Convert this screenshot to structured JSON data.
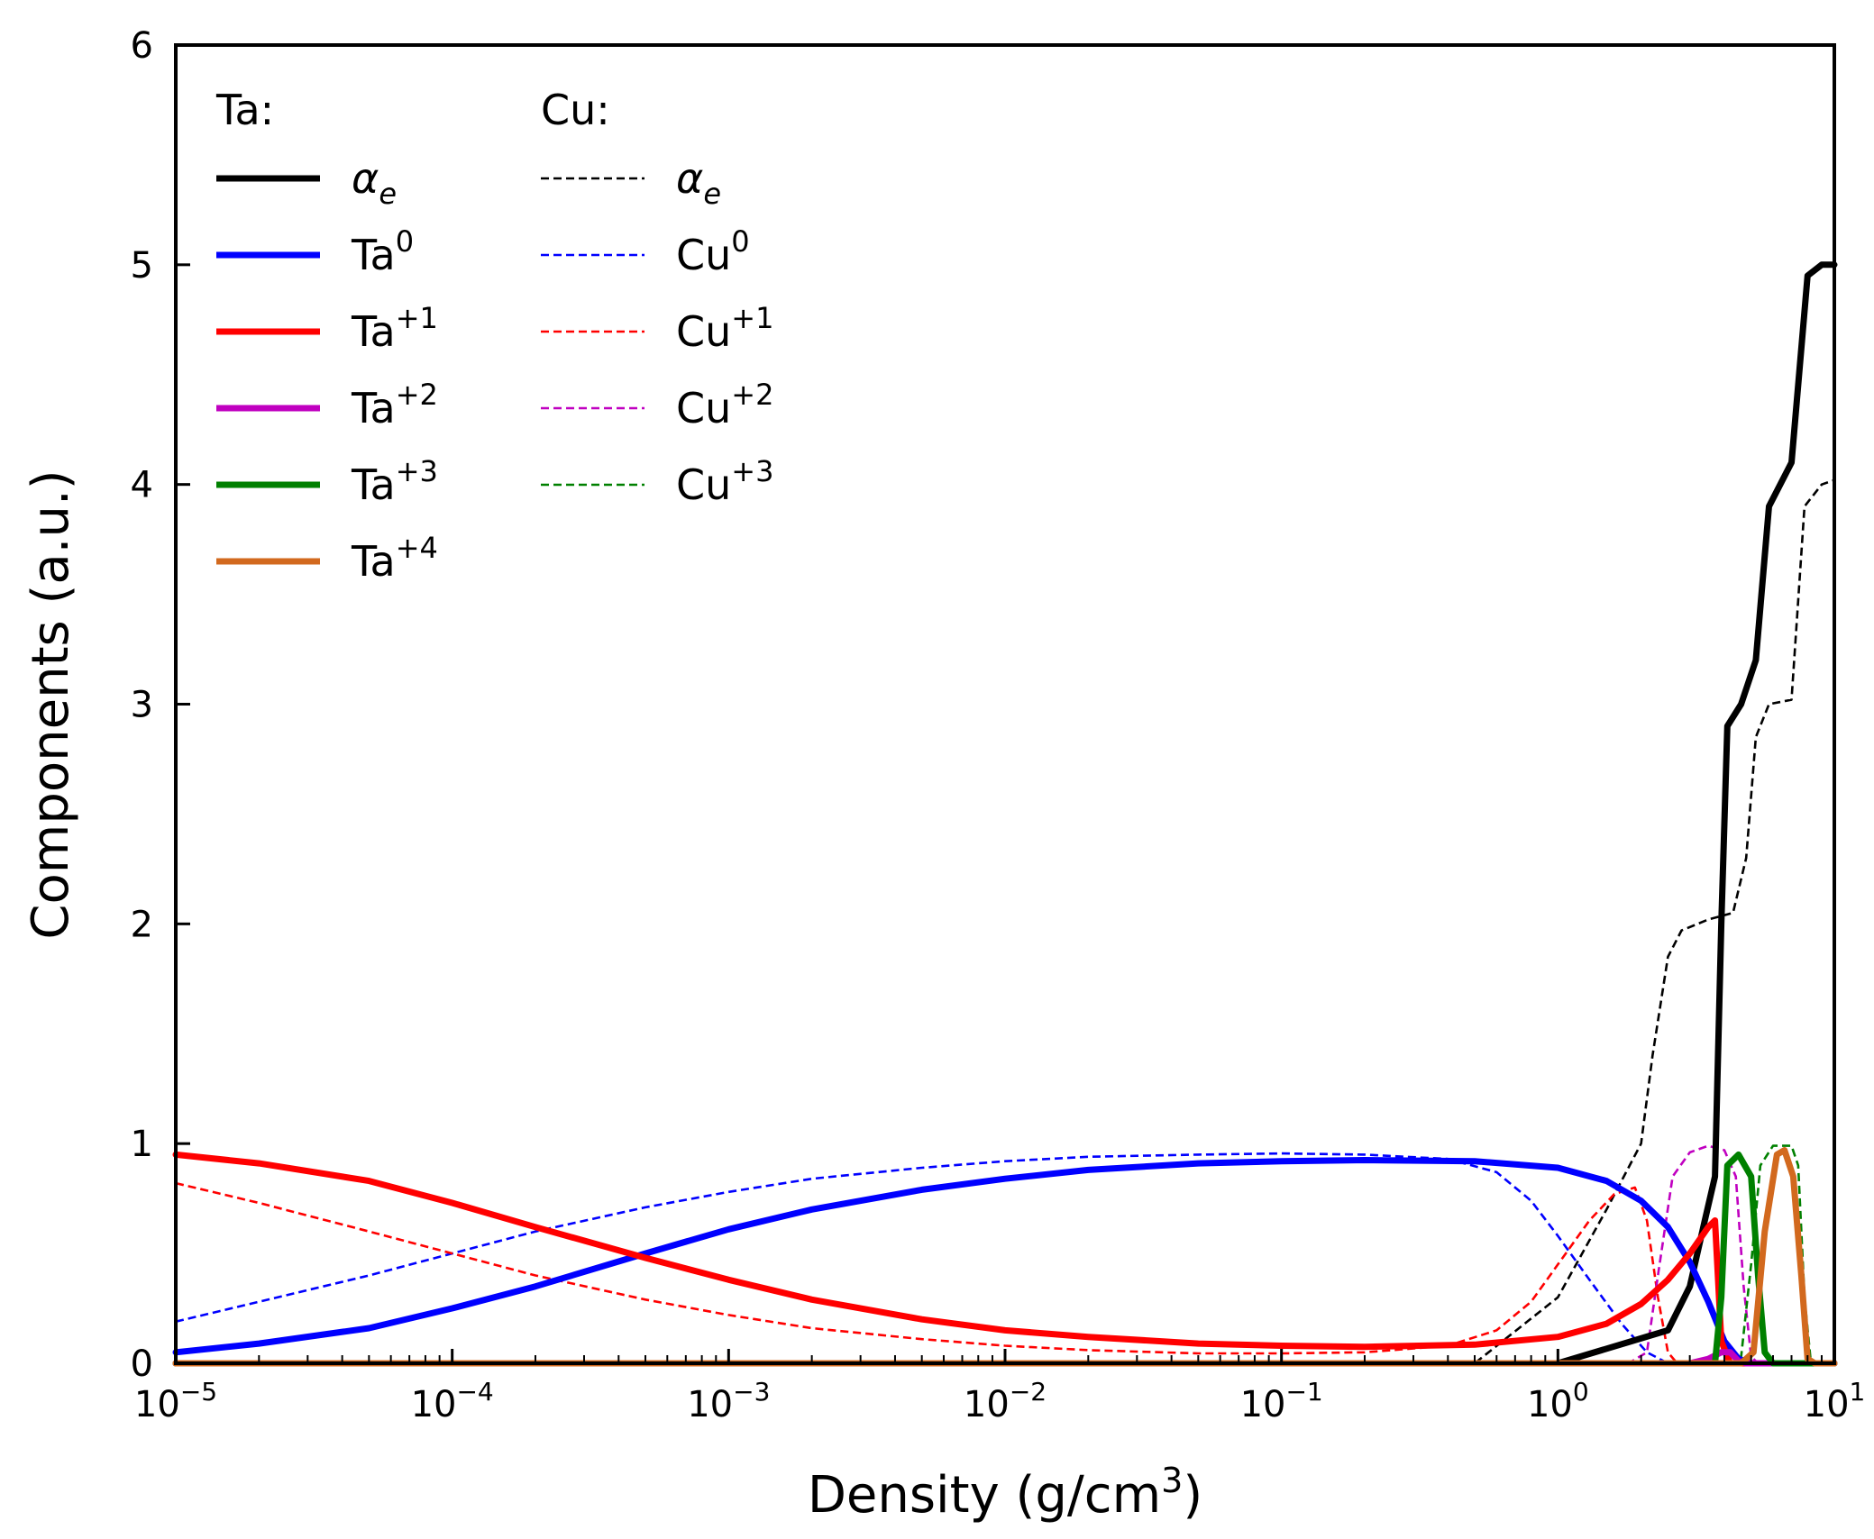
{
  "chart_data": {
    "type": "line",
    "xscale": "log",
    "xlabel": "Density (g/cm",
    "xlabel_sup": "3",
    "xlabel_suffix": ")",
    "ylabel": "Components (a.u.)",
    "xlim": [
      1e-05,
      10
    ],
    "ylim": [
      0,
      6
    ],
    "xticks": [
      {
        "base": "10",
        "exp": "−5",
        "value": 1e-05
      },
      {
        "base": "10",
        "exp": "−4",
        "value": 0.0001
      },
      {
        "base": "10",
        "exp": "−3",
        "value": 0.001
      },
      {
        "base": "10",
        "exp": "−2",
        "value": 0.01
      },
      {
        "base": "10",
        "exp": "−1",
        "value": 0.1
      },
      {
        "base": "10",
        "exp": "0",
        "value": 1
      },
      {
        "base": "10",
        "exp": "1",
        "value": 10
      }
    ],
    "yticks": [
      "0",
      "1",
      "2",
      "3",
      "4",
      "5",
      "6"
    ],
    "legend": {
      "placement": "top-left",
      "groups": [
        {
          "title": "Ta:",
          "entries": [
            {
              "label": "α",
              "sub": "e",
              "sup": "",
              "italic": true,
              "series": "ta_alpha"
            },
            {
              "label": "Ta",
              "sub": "",
              "sup": "0",
              "series": "ta0"
            },
            {
              "label": "Ta",
              "sub": "",
              "sup": "+1",
              "series": "ta1"
            },
            {
              "label": "Ta",
              "sub": "",
              "sup": "+2",
              "series": "ta2"
            },
            {
              "label": "Ta",
              "sub": "",
              "sup": "+3",
              "series": "ta3"
            },
            {
              "label": "Ta",
              "sub": "",
              "sup": "+4",
              "series": "ta4"
            }
          ]
        },
        {
          "title": "Cu:",
          "entries": [
            {
              "label": "α",
              "sub": "e",
              "sup": "",
              "italic": true,
              "series": "cu_alpha"
            },
            {
              "label": "Cu",
              "sub": "",
              "sup": "0",
              "series": "cu0"
            },
            {
              "label": "Cu",
              "sub": "",
              "sup": "+1",
              "series": "cu1"
            },
            {
              "label": "Cu",
              "sub": "",
              "sup": "+2",
              "series": "cu2"
            },
            {
              "label": "Cu",
              "sub": "",
              "sup": "+3",
              "series": "cu3"
            }
          ]
        }
      ]
    },
    "series": [
      {
        "id": "ta_alpha",
        "name": "Ta α_e",
        "color": "#000000",
        "style": "solid",
        "points": [
          [
            1e-05,
            0
          ],
          [
            1,
            0
          ],
          [
            2.5,
            0.15
          ],
          [
            3.0,
            0.35
          ],
          [
            3.4,
            0.65
          ],
          [
            3.7,
            0.85
          ],
          [
            3.9,
            2.0
          ],
          [
            4.1,
            2.9
          ],
          [
            4.6,
            3.0
          ],
          [
            5.2,
            3.2
          ],
          [
            5.8,
            3.9
          ],
          [
            7.0,
            4.1
          ],
          [
            8.0,
            4.95
          ],
          [
            9.0,
            5.0
          ],
          [
            10,
            5.0
          ]
        ]
      },
      {
        "id": "ta0",
        "name": "Ta0",
        "color": "#0000ff",
        "style": "solid",
        "points": [
          [
            1e-05,
            0.05
          ],
          [
            2e-05,
            0.09
          ],
          [
            5e-05,
            0.16
          ],
          [
            0.0001,
            0.25
          ],
          [
            0.0002,
            0.35
          ],
          [
            0.0005,
            0.5
          ],
          [
            0.001,
            0.61
          ],
          [
            0.002,
            0.7
          ],
          [
            0.005,
            0.79
          ],
          [
            0.01,
            0.84
          ],
          [
            0.02,
            0.88
          ],
          [
            0.05,
            0.91
          ],
          [
            0.1,
            0.92
          ],
          [
            0.2,
            0.925
          ],
          [
            0.5,
            0.92
          ],
          [
            1,
            0.89
          ],
          [
            1.5,
            0.83
          ],
          [
            2.0,
            0.74
          ],
          [
            2.5,
            0.62
          ],
          [
            3.0,
            0.46
          ],
          [
            3.5,
            0.28
          ],
          [
            4.0,
            0.1
          ],
          [
            4.5,
            0.02
          ],
          [
            5,
            0
          ],
          [
            10,
            0
          ]
        ]
      },
      {
        "id": "ta1",
        "name": "Ta+1",
        "color": "#ff0000",
        "style": "solid",
        "points": [
          [
            1e-05,
            0.95
          ],
          [
            2e-05,
            0.91
          ],
          [
            5e-05,
            0.83
          ],
          [
            0.0001,
            0.73
          ],
          [
            0.0002,
            0.62
          ],
          [
            0.0005,
            0.48
          ],
          [
            0.001,
            0.38
          ],
          [
            0.002,
            0.29
          ],
          [
            0.005,
            0.2
          ],
          [
            0.01,
            0.15
          ],
          [
            0.02,
            0.12
          ],
          [
            0.05,
            0.09
          ],
          [
            0.1,
            0.08
          ],
          [
            0.2,
            0.075
          ],
          [
            0.5,
            0.085
          ],
          [
            1,
            0.12
          ],
          [
            1.5,
            0.18
          ],
          [
            2,
            0.27
          ],
          [
            2.5,
            0.38
          ],
          [
            3,
            0.5
          ],
          [
            3.5,
            0.62
          ],
          [
            3.7,
            0.65
          ],
          [
            3.9,
            0.1
          ],
          [
            4.2,
            0
          ],
          [
            10,
            0
          ]
        ]
      },
      {
        "id": "ta2",
        "name": "Ta+2",
        "color": "#c000c0",
        "style": "solid",
        "points": [
          [
            1e-05,
            0
          ],
          [
            3.0,
            0
          ],
          [
            3.5,
            0.02
          ],
          [
            3.9,
            0.05
          ],
          [
            4.2,
            0.05
          ],
          [
            4.5,
            0.01
          ],
          [
            4.8,
            0
          ],
          [
            10,
            0
          ]
        ]
      },
      {
        "id": "ta3",
        "name": "Ta+3",
        "color": "#008000",
        "style": "solid",
        "points": [
          [
            1e-05,
            0
          ],
          [
            3.7,
            0
          ],
          [
            3.9,
            0.3
          ],
          [
            4.1,
            0.9
          ],
          [
            4.5,
            0.95
          ],
          [
            5.0,
            0.85
          ],
          [
            5.3,
            0.4
          ],
          [
            5.6,
            0.05
          ],
          [
            6.0,
            0
          ],
          [
            10,
            0
          ]
        ]
      },
      {
        "id": "ta4",
        "name": "Ta+4",
        "color": "#d2691e",
        "style": "solid",
        "points": [
          [
            1e-05,
            0
          ],
          [
            4.6,
            0
          ],
          [
            5.1,
            0.05
          ],
          [
            5.6,
            0.6
          ],
          [
            6.2,
            0.95
          ],
          [
            6.6,
            0.97
          ],
          [
            7.1,
            0.85
          ],
          [
            7.6,
            0.4
          ],
          [
            8.0,
            0.02
          ],
          [
            8.5,
            0
          ],
          [
            10,
            0
          ]
        ]
      },
      {
        "id": "cu_alpha",
        "name": "Cu α_e",
        "color": "#000000",
        "style": "dashed",
        "points": [
          [
            1e-05,
            0
          ],
          [
            0.5,
            0
          ],
          [
            1.0,
            0.3
          ],
          [
            1.5,
            0.7
          ],
          [
            2.0,
            1.0
          ],
          [
            2.2,
            1.4
          ],
          [
            2.5,
            1.85
          ],
          [
            2.8,
            1.97
          ],
          [
            3.5,
            2.02
          ],
          [
            4.3,
            2.05
          ],
          [
            4.8,
            2.3
          ],
          [
            5.2,
            2.85
          ],
          [
            5.8,
            3.0
          ],
          [
            7.0,
            3.02
          ],
          [
            7.8,
            3.9
          ],
          [
            9.0,
            4.0
          ],
          [
            10,
            4.02
          ]
        ]
      },
      {
        "id": "cu0",
        "name": "Cu0",
        "color": "#0000ff",
        "style": "dashed",
        "points": [
          [
            1e-05,
            0.19
          ],
          [
            2e-05,
            0.28
          ],
          [
            5e-05,
            0.4
          ],
          [
            0.0001,
            0.5
          ],
          [
            0.0002,
            0.6
          ],
          [
            0.0005,
            0.71
          ],
          [
            0.001,
            0.78
          ],
          [
            0.002,
            0.84
          ],
          [
            0.005,
            0.89
          ],
          [
            0.01,
            0.92
          ],
          [
            0.02,
            0.94
          ],
          [
            0.05,
            0.95
          ],
          [
            0.1,
            0.955
          ],
          [
            0.2,
            0.95
          ],
          [
            0.4,
            0.93
          ],
          [
            0.6,
            0.87
          ],
          [
            0.8,
            0.74
          ],
          [
            1.0,
            0.58
          ],
          [
            1.3,
            0.38
          ],
          [
            1.7,
            0.18
          ],
          [
            2.1,
            0.05
          ],
          [
            2.5,
            0
          ],
          [
            10,
            0
          ]
        ]
      },
      {
        "id": "cu1",
        "name": "Cu+1",
        "color": "#ff0000",
        "style": "dashed",
        "points": [
          [
            1e-05,
            0.82
          ],
          [
            2e-05,
            0.73
          ],
          [
            5e-05,
            0.6
          ],
          [
            0.0001,
            0.5
          ],
          [
            0.0002,
            0.4
          ],
          [
            0.0005,
            0.29
          ],
          [
            0.001,
            0.22
          ],
          [
            0.002,
            0.16
          ],
          [
            0.005,
            0.11
          ],
          [
            0.01,
            0.08
          ],
          [
            0.02,
            0.06
          ],
          [
            0.05,
            0.045
          ],
          [
            0.1,
            0.045
          ],
          [
            0.2,
            0.05
          ],
          [
            0.4,
            0.08
          ],
          [
            0.6,
            0.15
          ],
          [
            0.8,
            0.28
          ],
          [
            1.0,
            0.45
          ],
          [
            1.3,
            0.65
          ],
          [
            1.6,
            0.77
          ],
          [
            1.9,
            0.8
          ],
          [
            2.1,
            0.65
          ],
          [
            2.3,
            0.3
          ],
          [
            2.5,
            0.05
          ],
          [
            2.7,
            0
          ],
          [
            10,
            0
          ]
        ]
      },
      {
        "id": "cu2",
        "name": "Cu+2",
        "color": "#c000c0",
        "style": "dashed",
        "points": [
          [
            1e-05,
            0
          ],
          [
            1.8,
            0
          ],
          [
            2.1,
            0.05
          ],
          [
            2.3,
            0.4
          ],
          [
            2.6,
            0.85
          ],
          [
            3.0,
            0.96
          ],
          [
            3.5,
            0.99
          ],
          [
            4.0,
            0.97
          ],
          [
            4.4,
            0.85
          ],
          [
            4.7,
            0.35
          ],
          [
            5.0,
            0.03
          ],
          [
            5.3,
            0
          ],
          [
            10,
            0
          ]
        ]
      },
      {
        "id": "cu3",
        "name": "Cu+3",
        "color": "#008000",
        "style": "dashed",
        "points": [
          [
            1e-05,
            0
          ],
          [
            4.2,
            0
          ],
          [
            4.6,
            0.03
          ],
          [
            5.0,
            0.45
          ],
          [
            5.4,
            0.9
          ],
          [
            6.0,
            0.99
          ],
          [
            7.0,
            0.99
          ],
          [
            7.4,
            0.9
          ],
          [
            7.8,
            0.3
          ],
          [
            8.2,
            0.02
          ],
          [
            8.6,
            0
          ],
          [
            10,
            0
          ]
        ]
      }
    ]
  }
}
